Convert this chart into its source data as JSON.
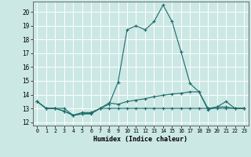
{
  "xlabel": "Humidex (Indice chaleur)",
  "xlim": [
    -0.5,
    23.5
  ],
  "ylim": [
    11.75,
    20.75
  ],
  "yticks": [
    12,
    13,
    14,
    15,
    16,
    17,
    18,
    19,
    20
  ],
  "xticks": [
    0,
    1,
    2,
    3,
    4,
    5,
    6,
    7,
    8,
    9,
    10,
    11,
    12,
    13,
    14,
    15,
    16,
    17,
    18,
    19,
    20,
    21,
    22,
    23
  ],
  "bg_color": "#cce8e4",
  "grid_color": "#ffffff",
  "line_color": "#1a6b6b",
  "lines": [
    {
      "x": [
        0,
        1,
        2,
        3,
        4,
        5,
        6,
        7,
        8,
        9,
        10,
        11,
        12,
        13,
        14,
        15,
        16,
        17,
        18,
        19,
        20,
        21,
        22,
        23
      ],
      "y": [
        13.5,
        13.0,
        13.0,
        12.8,
        12.5,
        12.6,
        12.6,
        13.0,
        13.3,
        14.9,
        18.7,
        19.0,
        18.7,
        19.3,
        20.5,
        19.3,
        17.1,
        14.8,
        14.2,
        12.9,
        13.1,
        13.5,
        13.0,
        13.0
      ]
    },
    {
      "x": [
        0,
        1,
        2,
        3,
        4,
        5,
        6,
        7,
        8,
        9,
        10,
        11,
        12,
        13,
        14,
        15,
        16,
        17,
        18,
        19,
        20,
        21,
        22,
        23
      ],
      "y": [
        13.5,
        13.0,
        13.0,
        12.8,
        12.5,
        12.7,
        12.7,
        13.0,
        13.4,
        13.3,
        13.5,
        13.6,
        13.7,
        13.85,
        13.95,
        14.05,
        14.1,
        14.2,
        14.2,
        13.0,
        13.1,
        13.1,
        13.0,
        13.0
      ]
    },
    {
      "x": [
        0,
        1,
        2,
        3,
        4,
        5,
        6,
        7,
        8,
        9,
        10,
        11,
        12,
        13,
        14,
        15,
        16,
        17,
        18,
        19,
        20,
        21,
        22,
        23
      ],
      "y": [
        13.5,
        13.0,
        13.0,
        13.0,
        12.5,
        12.6,
        12.65,
        13.0,
        13.0,
        13.0,
        13.0,
        13.0,
        13.0,
        13.0,
        13.0,
        13.0,
        13.0,
        13.0,
        13.0,
        13.0,
        13.0,
        13.0,
        13.0,
        13.0
      ]
    }
  ]
}
